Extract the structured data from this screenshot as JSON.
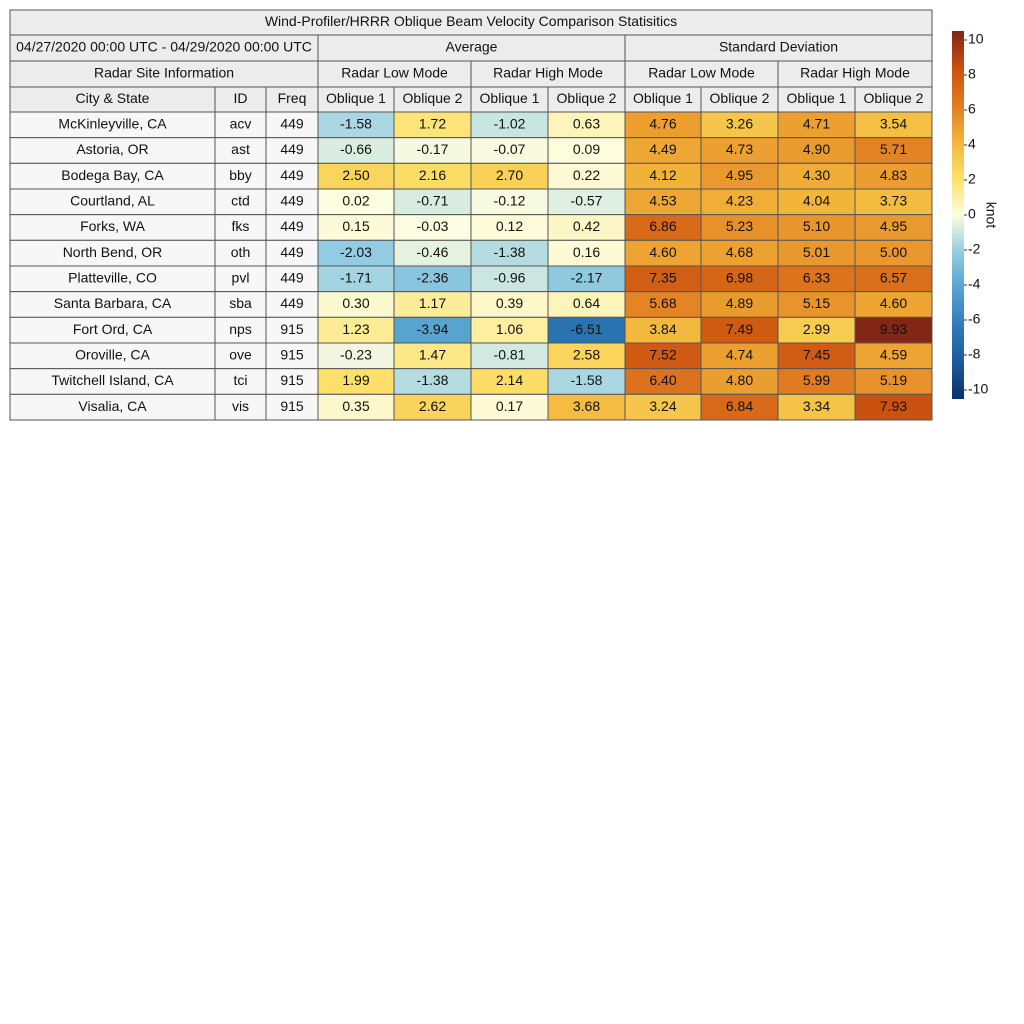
{
  "title": "Wind-Profiler/HRRR Oblique Beam Velocity Comparison Statisitics",
  "date_range": "04/27/2020 00:00 UTC - 04/29/2020 00:00 UTC",
  "groups": [
    "Average",
    "Standard Deviation"
  ],
  "site_info": "Radar Site Information",
  "modes": [
    "Radar Low Mode",
    "Radar High Mode",
    "Radar Low Mode",
    "Radar High Mode"
  ],
  "columns": [
    "City & State",
    "ID",
    "Freq",
    "Oblique 1",
    "Oblique 2",
    "Oblique 1",
    "Oblique 2",
    "Oblique 1",
    "Oblique 2",
    "Oblique 1",
    "Oblique 2"
  ],
  "rows": [
    [
      "McKinleyville, CA",
      "acv",
      "449",
      "-1.58",
      "1.72",
      "-1.02",
      "0.63",
      "4.76",
      "3.26",
      "4.71",
      "3.54"
    ],
    [
      "Astoria, OR",
      "ast",
      "449",
      "-0.66",
      "-0.17",
      "-0.07",
      "0.09",
      "4.49",
      "4.73",
      "4.90",
      "5.71"
    ],
    [
      "Bodega Bay, CA",
      "bby",
      "449",
      "2.50",
      "2.16",
      "2.70",
      "0.22",
      "4.12",
      "4.95",
      "4.30",
      "4.83"
    ],
    [
      "Courtland, AL",
      "ctd",
      "449",
      "0.02",
      "-0.71",
      "-0.12",
      "-0.57",
      "4.53",
      "4.23",
      "4.04",
      "3.73"
    ],
    [
      "Forks, WA",
      "fks",
      "449",
      "0.15",
      "-0.03",
      "0.12",
      "0.42",
      "6.86",
      "5.23",
      "5.10",
      "4.95"
    ],
    [
      "North Bend, OR",
      "oth",
      "449",
      "-2.03",
      "-0.46",
      "-1.38",
      "0.16",
      "4.60",
      "4.68",
      "5.01",
      "5.00"
    ],
    [
      "Platteville, CO",
      "pvl",
      "449",
      "-1.71",
      "-2.36",
      "-0.96",
      "-2.17",
      "7.35",
      "6.98",
      "6.33",
      "6.57"
    ],
    [
      "Santa Barbara, CA",
      "sba",
      "449",
      "0.30",
      "1.17",
      "0.39",
      "0.64",
      "5.68",
      "4.89",
      "5.15",
      "4.60"
    ],
    [
      "Fort Ord, CA",
      "nps",
      "915",
      "1.23",
      "-3.94",
      "1.06",
      "-6.51",
      "3.84",
      "7.49",
      "2.99",
      "9.93"
    ],
    [
      "Oroville, CA",
      "ove",
      "915",
      "-0.23",
      "1.47",
      "-0.81",
      "2.58",
      "7.52",
      "4.74",
      "7.45",
      "4.59"
    ],
    [
      "Twitchell Island, CA",
      "tci",
      "915",
      "1.99",
      "-1.38",
      "2.14",
      "-1.58",
      "6.40",
      "4.80",
      "5.99",
      "5.19"
    ],
    [
      "Visalia, CA",
      "vis",
      "915",
      "0.35",
      "2.62",
      "0.17",
      "3.68",
      "3.24",
      "6.84",
      "3.34",
      "7.93"
    ]
  ],
  "colorbar": {
    "label": "knot",
    "lim": [
      -10,
      10
    ],
    "ticks": [
      -10,
      -8,
      -6,
      -4,
      -2,
      0,
      2,
      4,
      6,
      8,
      10
    ],
    "colors": [
      "#08306b",
      "#1c5a9c",
      "#2f7cb8",
      "#55a3cf",
      "#94cde2",
      "#fdfde0",
      "#fde068",
      "#f2b53a",
      "#e17b20",
      "#c9500f",
      "#7f2518"
    ]
  }
}
